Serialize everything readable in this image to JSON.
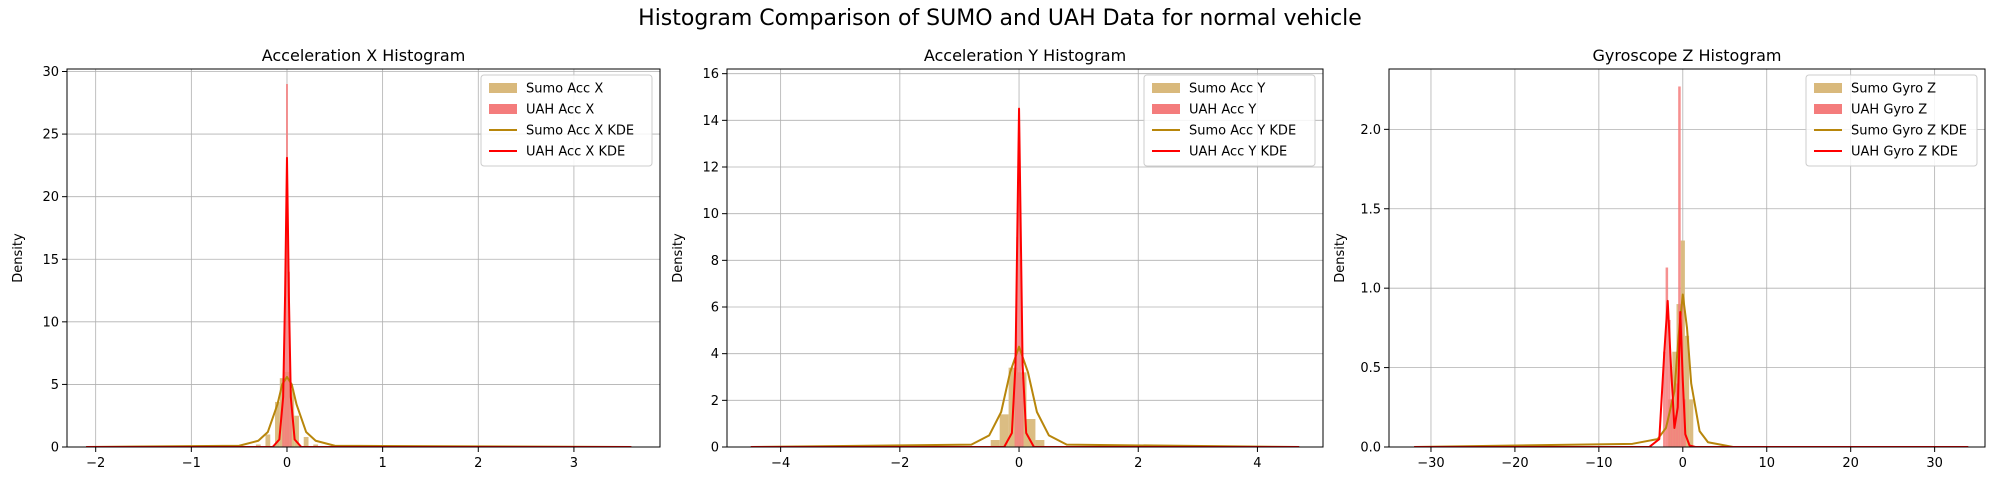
{
  "suptitle": "Histogram Comparison of SUMO and UAH Data for normal vehicle",
  "colors": {
    "sumo_hist": "#d9b97c",
    "uah_hist": "#f47c7c",
    "sumo_kde": "#b8860b",
    "uah_kde": "#ff0000",
    "grid": "#b0b0b0"
  },
  "chart_data": [
    {
      "type": "histogram",
      "title": "Acceleration X Histogram",
      "xlabel": "",
      "ylabel": "Density",
      "xlim": [
        -2.3,
        3.9
      ],
      "ylim": [
        0,
        30.2
      ],
      "xticks": [
        -2,
        -1,
        0,
        1,
        2,
        3
      ],
      "yticks": [
        0,
        5,
        10,
        15,
        20,
        25,
        30
      ],
      "grid": true,
      "legend_position": "upper right",
      "legend": [
        "Sumo Acc X",
        "UAH Acc X",
        "Sumo Acc X KDE",
        "UAH Acc X KDE"
      ],
      "sumo_hist": {
        "name": "Sumo Acc X",
        "bins": [
          [
            -0.3,
            0.2
          ],
          [
            -0.2,
            1.0
          ],
          [
            -0.1,
            3.6
          ],
          [
            -0.05,
            5.5
          ],
          [
            0.0,
            6.0
          ],
          [
            0.05,
            4.6
          ],
          [
            0.1,
            2.5
          ],
          [
            0.2,
            0.8
          ],
          [
            0.3,
            0.2
          ]
        ],
        "bin_width": 0.05
      },
      "uah_hist": {
        "name": "UAH Acc X",
        "bins": [
          [
            -0.04,
            5.0
          ],
          [
            -0.02,
            12.0
          ],
          [
            0.0,
            29.0
          ],
          [
            0.02,
            14.0
          ],
          [
            0.04,
            4.0
          ]
        ],
        "bin_width": 0.02
      },
      "sumo_kde": {
        "name": "Sumo Acc X KDE",
        "x": [
          -2.1,
          -0.5,
          -0.3,
          -0.2,
          -0.1,
          -0.05,
          0.0,
          0.05,
          0.1,
          0.2,
          0.3,
          0.5,
          3.6
        ],
        "y": [
          0.0,
          0.1,
          0.5,
          1.2,
          3.4,
          5.0,
          5.6,
          5.0,
          3.4,
          1.2,
          0.5,
          0.1,
          0.0
        ]
      },
      "uah_kde": {
        "name": "UAH Acc X KDE",
        "x": [
          -2.1,
          -0.15,
          -0.08,
          -0.04,
          -0.02,
          0.0,
          0.02,
          0.04,
          0.08,
          0.15,
          3.6
        ],
        "y": [
          0.0,
          0.0,
          0.6,
          4.0,
          12.0,
          23.1,
          12.0,
          4.0,
          0.6,
          0.0,
          0.0
        ]
      }
    },
    {
      "type": "histogram",
      "title": "Acceleration Y Histogram",
      "xlabel": "",
      "ylabel": "Density",
      "xlim": [
        -4.9,
        5.1
      ],
      "ylim": [
        0,
        16.2
      ],
      "xticks": [
        -4,
        -2,
        0,
        2,
        4
      ],
      "yticks": [
        0,
        2,
        4,
        6,
        8,
        10,
        12,
        14,
        16
      ],
      "grid": true,
      "legend_position": "upper right",
      "legend": [
        "Sumo Acc Y",
        "UAH Acc Y",
        "Sumo Acc Y KDE",
        "UAH Acc Y KDE"
      ],
      "sumo_hist": {
        "name": "Sumo Acc Y",
        "bins": [
          [
            -0.4,
            0.3
          ],
          [
            -0.25,
            1.4
          ],
          [
            -0.1,
            3.4
          ],
          [
            0.05,
            3.2
          ],
          [
            0.2,
            1.2
          ],
          [
            0.35,
            0.3
          ]
        ],
        "bin_width": 0.15
      },
      "uah_hist": {
        "name": "UAH Acc Y",
        "bins": [
          [
            -0.06,
            4.0
          ],
          [
            -0.03,
            9.0
          ],
          [
            0.0,
            14.0
          ],
          [
            0.03,
            8.0
          ],
          [
            0.06,
            3.0
          ]
        ],
        "bin_width": 0.03
      },
      "sumo_kde": {
        "name": "Sumo Acc Y KDE",
        "x": [
          -4.5,
          -0.8,
          -0.5,
          -0.3,
          -0.15,
          0.0,
          0.15,
          0.3,
          0.5,
          0.8,
          4.7
        ],
        "y": [
          0.0,
          0.1,
          0.5,
          1.5,
          3.2,
          4.3,
          3.2,
          1.5,
          0.5,
          0.1,
          0.0
        ]
      },
      "uah_kde": {
        "name": "UAH Acc Y KDE",
        "x": [
          -4.5,
          -0.25,
          -0.12,
          -0.06,
          -0.03,
          0.0,
          0.03,
          0.06,
          0.12,
          0.25,
          4.7
        ],
        "y": [
          0.0,
          0.0,
          0.6,
          3.5,
          9.0,
          14.5,
          9.0,
          3.5,
          0.6,
          0.0,
          0.0
        ]
      }
    },
    {
      "type": "histogram",
      "title": "Gyroscope Z Histogram",
      "xlabel": "",
      "ylabel": "Density",
      "xlim": [
        -35,
        36
      ],
      "ylim": [
        0,
        2.38
      ],
      "xticks": [
        -30,
        -20,
        -10,
        0,
        10,
        20,
        30
      ],
      "yticks": [
        0.0,
        0.5,
        1.0,
        1.5,
        2.0
      ],
      "grid": true,
      "legend_position": "upper right",
      "legend": [
        "Sumo Gyro Z",
        "UAH Gyro Z",
        "Sumo Gyro Z KDE",
        "UAH Gyro Z KDE"
      ],
      "sumo_hist": {
        "name": "Sumo Gyro Z",
        "bins": [
          [
            -1.5,
            0.3
          ],
          [
            -1.0,
            0.6
          ],
          [
            -0.5,
            0.9
          ],
          [
            0.0,
            1.3
          ],
          [
            0.5,
            0.7
          ],
          [
            1.0,
            0.3
          ]
        ],
        "bin_width": 0.5
      },
      "uah_hist": {
        "name": "UAH Gyro Z",
        "bins": [
          [
            -2.2,
            0.6
          ],
          [
            -1.9,
            1.13
          ],
          [
            -1.6,
            0.8
          ],
          [
            -1.3,
            0.3
          ],
          [
            -1.0,
            0.2
          ],
          [
            -0.7,
            0.4
          ],
          [
            -0.4,
            2.27
          ],
          [
            -0.1,
            0.9
          ],
          [
            0.2,
            0.3
          ]
        ],
        "bin_width": 0.3
      },
      "sumo_kde": {
        "name": "Sumo Gyro Z KDE",
        "x": [
          -32,
          -6,
          -3,
          -2,
          -1,
          -0.5,
          0.0,
          0.5,
          1.0,
          2.0,
          3.0,
          6.0,
          34
        ],
        "y": [
          0.0,
          0.02,
          0.05,
          0.12,
          0.35,
          0.7,
          0.96,
          0.75,
          0.4,
          0.1,
          0.03,
          0.0,
          0.0
        ]
      },
      "uah_kde": {
        "name": "UAH Gyro Z KDE",
        "x": [
          -32,
          -4,
          -2.8,
          -2.2,
          -1.8,
          -1.4,
          -1.0,
          -0.6,
          -0.3,
          0.0,
          0.3,
          0.8,
          1.5,
          34
        ],
        "y": [
          0.0,
          0.0,
          0.05,
          0.6,
          0.92,
          0.5,
          0.12,
          0.25,
          0.85,
          0.42,
          0.08,
          0.01,
          0.0,
          0.0
        ]
      }
    }
  ]
}
